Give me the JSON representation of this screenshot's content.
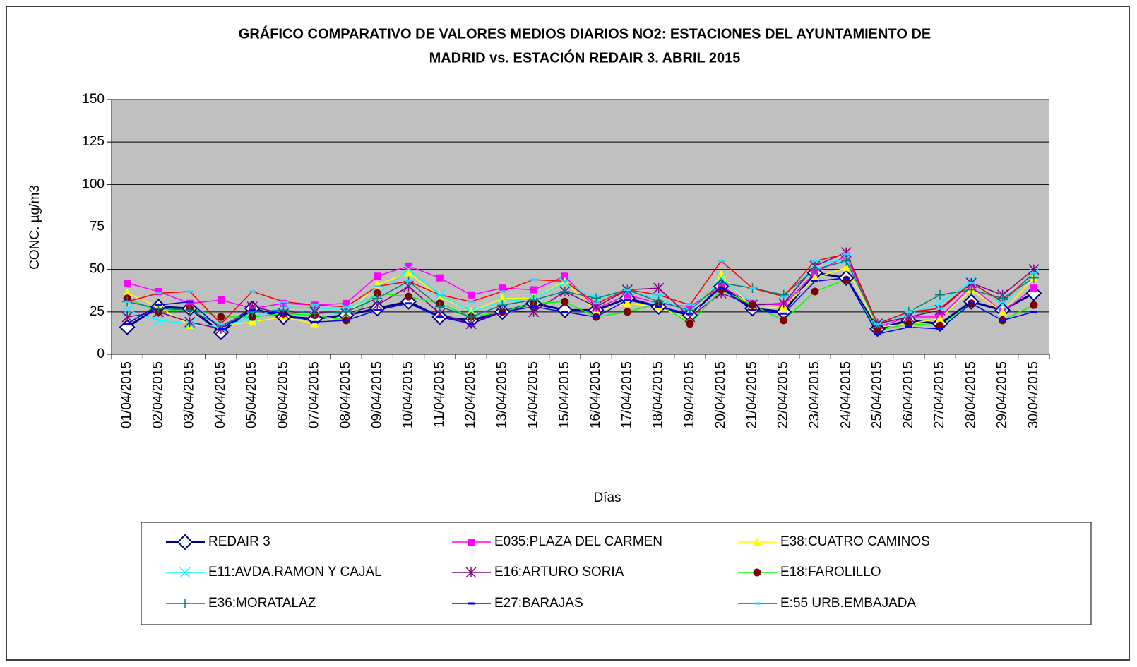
{
  "chart_data": {
    "type": "line",
    "title": [
      "GRÁFICO COMPARATIVO DE VALORES MEDIOS DIARIOS NO2: ESTACIONES DEL AYUNTAMIENTO DE",
      "MADRID vs.  ESTACIÓN REDAIR 3. ABRIL 2015"
    ],
    "x_label": "Días",
    "y_label": "CONC.   µg/m3",
    "ylim": [
      0,
      150
    ],
    "yticks": [
      0,
      25,
      50,
      75,
      100,
      125,
      150
    ],
    "grid": true,
    "background": "#c0c0c0",
    "categories": [
      "01/04/2015",
      "02/04/2015",
      "03/04/2015",
      "04/04/2015",
      "05/04/2015",
      "06/04/2015",
      "07/04/2015",
      "08/04/2015",
      "09/04/2015",
      "10/04/2015",
      "11/04/2015",
      "12/04/2015",
      "13/04/2015",
      "14/04/2015",
      "15/04/2015",
      "16/04/2015",
      "17/04/2015",
      "18/04/2015",
      "19/04/2015",
      "20/04/2015",
      "21/04/2015",
      "22/04/2015",
      "23/04/2015",
      "24/04/2015",
      "25/04/2015",
      "26/04/2015",
      "27/04/2015",
      "28/04/2015",
      "29/04/2015",
      "30/04/2015"
    ],
    "series": [
      {
        "name": "REDAIR 3",
        "color": "#000080",
        "marker": "diamond",
        "marker_color": "#000080",
        "values": [
          16,
          28,
          27,
          13,
          27,
          22,
          21,
          23,
          27,
          31,
          22,
          20,
          25,
          30,
          26,
          26,
          33,
          28,
          23,
          40,
          27,
          25,
          48,
          45,
          15,
          20,
          18,
          31,
          26,
          36
        ]
      },
      {
        "name": "E035:PLAZA DEL CARMEN",
        "color": "#ff00ff",
        "marker": "square",
        "marker_color": "#ff00ff",
        "values": [
          42,
          37,
          30,
          32,
          27,
          30,
          29,
          30,
          46,
          52,
          45,
          35,
          39,
          38,
          46,
          27,
          35,
          30,
          28,
          40,
          30,
          29,
          48,
          58,
          16,
          22,
          22,
          40,
          25,
          39
        ]
      },
      {
        "name": "E38:CUATRO CAMINOS",
        "color": "#ffff00",
        "marker": "triangle",
        "marker_color": "#ffff00",
        "values": [
          36,
          28,
          17,
          17,
          19,
          22,
          18,
          23,
          41,
          48,
          34,
          25,
          33,
          33,
          43,
          25,
          30,
          28,
          20,
          47,
          27,
          28,
          45,
          51,
          16,
          18,
          21,
          38,
          25,
          45
        ]
      },
      {
        "name": "E11:AVDA.RAMON Y CAJAL",
        "color": "#00ffff",
        "marker": "x",
        "marker_color": "#00ffff",
        "values": [
          26,
          20,
          18,
          16,
          22,
          28,
          27,
          27,
          35,
          50,
          35,
          25,
          31,
          33,
          42,
          33,
          37,
          33,
          25,
          45,
          30,
          30,
          53,
          56,
          17,
          24,
          30,
          43,
          29,
          48
        ]
      },
      {
        "name": "E16:ARTURO SORIA",
        "color": "#800080",
        "marker": "star",
        "marker_color": "#800080",
        "values": [
          22,
          25,
          19,
          15,
          28,
          24,
          25,
          24,
          29,
          40,
          24,
          18,
          26,
          25,
          37,
          28,
          38,
          39,
          22,
          36,
          29,
          30,
          52,
          60,
          18,
          22,
          26,
          42,
          35,
          50
        ]
      },
      {
        "name": "E18:FAROLILLO",
        "color": "#00ff00",
        "marker": "circle",
        "marker_color": "#800000",
        "values": [
          33,
          25,
          27,
          22,
          22,
          24,
          23,
          20,
          36,
          34,
          30,
          22,
          25,
          30,
          31,
          22,
          25,
          30,
          18,
          38,
          29,
          20,
          37,
          44,
          14,
          18,
          17,
          30,
          20,
          29
        ]
      },
      {
        "name": "E36:MORATALAZ",
        "color": "#008080",
        "marker": "plus",
        "marker_color": "#008080",
        "values": [
          31,
          27,
          26,
          17,
          25,
          26,
          24,
          25,
          33,
          43,
          28,
          22,
          29,
          32,
          37,
          33,
          38,
          31,
          26,
          42,
          39,
          35,
          50,
          55,
          18,
          25,
          35,
          38,
          33,
          45
        ]
      },
      {
        "name": "E27:BARAJAS",
        "color": "#0000ff",
        "marker": "dash",
        "marker_color": "#0000ff",
        "values": [
          18,
          29,
          31,
          15,
          26,
          24,
          19,
          20,
          26,
          30,
          22,
          18,
          25,
          28,
          25,
          22,
          32,
          28,
          24,
          39,
          26,
          24,
          43,
          45,
          12,
          16,
          15,
          30,
          20,
          25
        ]
      },
      {
        "name": "E:55 URB.EMBAJADA",
        "color": "#ff0000",
        "marker": "dash",
        "marker_color": "#33ccff",
        "values": [
          31,
          36,
          37,
          18,
          37,
          31,
          29,
          28,
          40,
          43,
          35,
          31,
          37,
          44,
          43,
          30,
          38,
          35,
          29,
          55,
          39,
          34,
          55,
          59,
          18,
          25,
          27,
          42,
          31,
          48
        ]
      }
    ]
  }
}
